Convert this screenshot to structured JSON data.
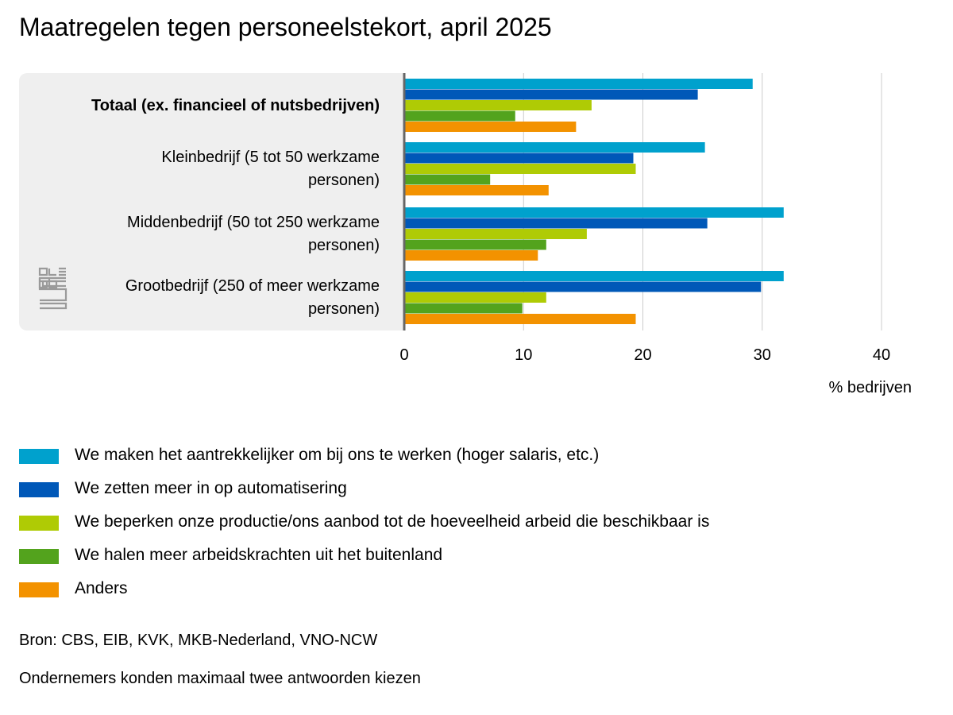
{
  "title": "Maatregelen tegen personeelstekort, april 2025",
  "source": "Bron: CBS, EIB, KVK, MKB-Nederland, VNO-NCW",
  "footnote": "Ondernemers konden maximaal twee antwoorden kiezen",
  "logo_text": "cbs",
  "colors": {
    "panel_bg": "#efefef",
    "gridline": "#cccccc",
    "axis": "#666666"
  },
  "chart_data": {
    "type": "bar",
    "orientation": "horizontal",
    "categories": [
      "Totaal (ex. financieel of nutsbedrijven)",
      "Kleinbedrijf (5 tot 50 werkzame personen)",
      "Middenbedrijf (50 tot 250 werkzame personen)",
      "Grootbedrijf (250 of meer werkzame personen)"
    ],
    "category_lines": [
      [
        "Totaal (ex. financieel of nutsbedrijven)"
      ],
      [
        "Kleinbedrijf (5 tot 50 werkzame",
        "personen)"
      ],
      [
        "Middenbedrijf (50 tot 250 werkzame",
        "personen)"
      ],
      [
        "Grootbedrijf (250 of meer werkzame",
        "personen)"
      ]
    ],
    "bold_category": 0,
    "series": [
      {
        "name": "We maken het aantrekkelijker om bij ons te werken (hoger salaris, etc.)",
        "color": "#00a1cd",
        "values": [
          29.2,
          25.2,
          31.8,
          31.8
        ]
      },
      {
        "name": "We zetten meer in op automatisering",
        "color": "#0058b8",
        "values": [
          24.6,
          19.2,
          25.4,
          29.9
        ]
      },
      {
        "name": "We beperken onze productie/ons aanbod tot de hoeveelheid arbeid die beschikbaar is",
        "color": "#afcb05",
        "values": [
          15.7,
          19.4,
          15.3,
          11.9
        ]
      },
      {
        "name": "We halen meer arbeidskrachten uit het buitenland",
        "color": "#53a31d",
        "values": [
          9.3,
          7.2,
          11.9,
          9.9
        ]
      },
      {
        "name": "Anders",
        "color": "#f39200",
        "values": [
          14.4,
          12.1,
          11.2,
          19.4
        ]
      }
    ],
    "xlim": [
      0,
      40
    ],
    "xticks": [
      0,
      10,
      20,
      30,
      40
    ],
    "xlabel": "% bedrijven",
    "grid": true,
    "legend_position": "bottom"
  }
}
